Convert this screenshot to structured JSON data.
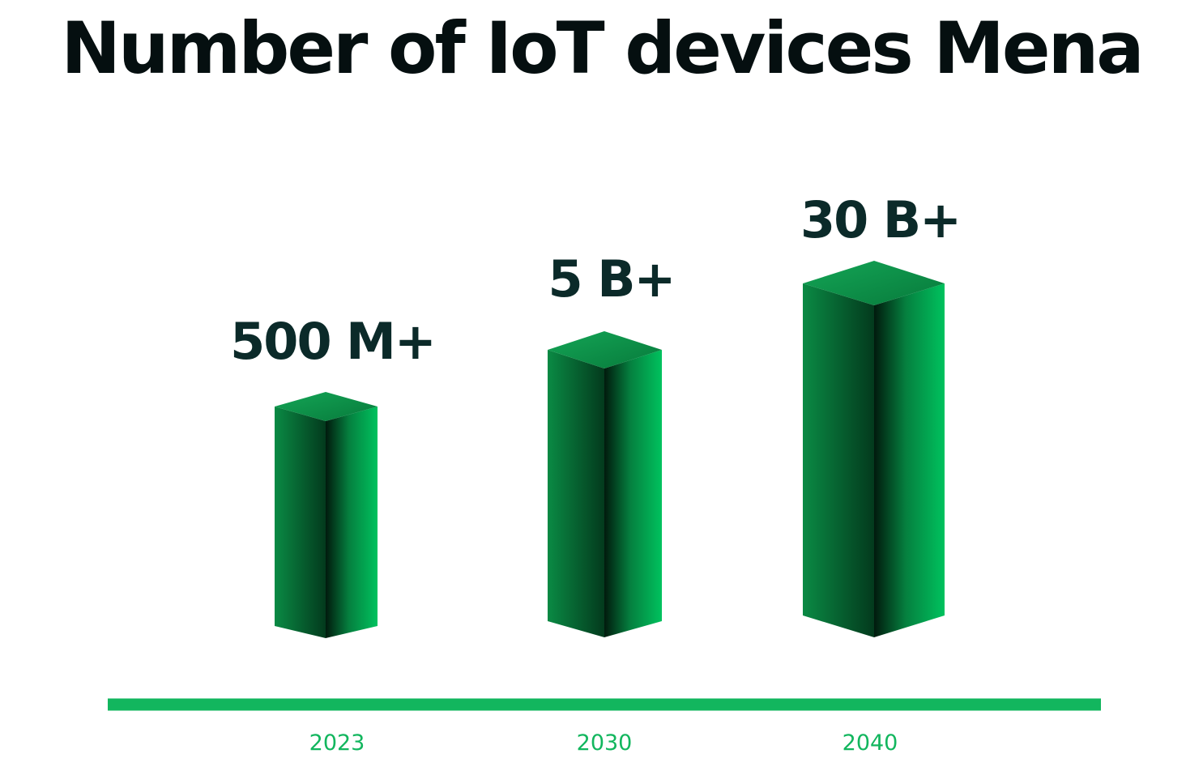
{
  "chart_data": {
    "type": "bar",
    "title": "Number of IoT devices Mena",
    "categories": [
      "2023",
      "2030",
      "2040"
    ],
    "values": [
      500000000,
      5000000000,
      30000000000
    ],
    "value_labels": [
      "500 M+",
      "5 B+",
      "30 B+"
    ],
    "xlabel": "",
    "ylabel": "",
    "grid": false,
    "legend": "none",
    "colors": {
      "bar_light": "#00c25e",
      "bar_mid": "#0a8a44",
      "bar_dark": "#022a15",
      "axis": "#12b65e",
      "value_text": "#0b2a29",
      "tick_text": "#12b65e"
    }
  }
}
